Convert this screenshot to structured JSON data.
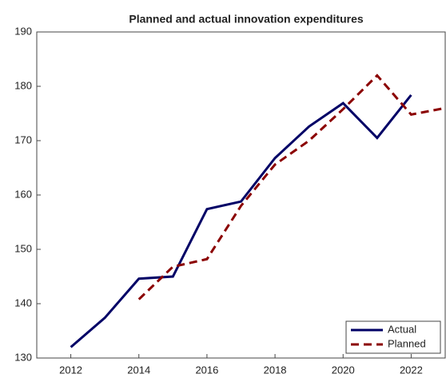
{
  "chart_data": {
    "type": "line",
    "title": "Planned and actual innovation expenditures",
    "x": [
      2012,
      2013,
      2014,
      2015,
      2016,
      2017,
      2018,
      2019,
      2020,
      2021,
      2022,
      2023
    ],
    "series": [
      {
        "name": "Actual",
        "color": "#000066",
        "dash": false,
        "values": [
          132,
          137.4,
          144.6,
          145,
          157.4,
          158.8,
          166.8,
          172.6,
          176.9,
          170.5,
          178.4,
          null
        ]
      },
      {
        "name": "Planned",
        "color": "#8b0000",
        "dash": true,
        "values": [
          null,
          null,
          140.8,
          146.8,
          148.2,
          158,
          165.6,
          170,
          175.8,
          182,
          174.8,
          176
        ]
      }
    ],
    "xlim": [
      2011,
      2023
    ],
    "xticks": [
      2012,
      2014,
      2016,
      2018,
      2020,
      2022
    ],
    "ylim": [
      130,
      190
    ],
    "yticks": [
      130,
      140,
      150,
      160,
      170,
      180,
      190
    ],
    "grid": false,
    "legend": "lower right"
  }
}
